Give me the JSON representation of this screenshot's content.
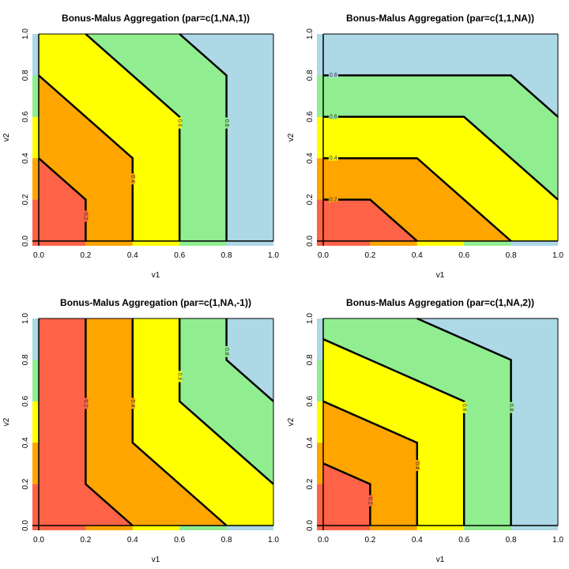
{
  "chart_data": [
    {
      "type": "contour",
      "title": "Bonus-Malus Aggregation (par=c(1,NA,1))",
      "xlabel": "v1",
      "ylabel": "v2",
      "xlim": [
        0,
        1
      ],
      "ylim": [
        0,
        1
      ],
      "xticks": [
        "0.0",
        "0.2",
        "0.4",
        "0.6",
        "0.8",
        "1.0"
      ],
      "yticks": [
        "0.0",
        "0.2",
        "0.4",
        "0.6",
        "0.8",
        "1.0"
      ],
      "label_orientation": "vertical",
      "contours": [
        {
          "level": "0.2",
          "points": [
            [
              0,
              0.4
            ],
            [
              0.2,
              0.2
            ],
            [
              0.2,
              0
            ]
          ],
          "label_at": [
            0.2,
            0.12
          ]
        },
        {
          "level": "0.4",
          "points": [
            [
              0,
              0.8
            ],
            [
              0.4,
              0.4
            ],
            [
              0.4,
              0
            ]
          ],
          "label_at": [
            0.4,
            0.3
          ]
        },
        {
          "level": "0.6",
          "points": [
            [
              0.2,
              1
            ],
            [
              0.6,
              0.6
            ],
            [
              0.6,
              0
            ]
          ],
          "label_at": [
            0.6,
            0.57
          ]
        },
        {
          "level": "0.8",
          "points": [
            [
              0.6,
              1
            ],
            [
              0.8,
              0.8
            ],
            [
              0.8,
              0
            ]
          ],
          "label_at": [
            0.8,
            0.57
          ]
        }
      ]
    },
    {
      "type": "contour",
      "title": "Bonus-Malus Aggregation (par=c(1,1,NA))",
      "xlabel": "v1",
      "ylabel": "v2",
      "xlim": [
        0,
        1
      ],
      "ylim": [
        0,
        1
      ],
      "xticks": [
        "0.0",
        "0.2",
        "0.4",
        "0.6",
        "0.8",
        "1.0"
      ],
      "yticks": [
        "0.0",
        "0.2",
        "0.4",
        "0.6",
        "0.8",
        "1.0"
      ],
      "label_orientation": "horizontal",
      "contours": [
        {
          "level": "0.2",
          "points": [
            [
              0,
              0.2
            ],
            [
              0.2,
              0.2
            ],
            [
              0.4,
              0
            ]
          ],
          "label_at": [
            0.03,
            0.2
          ]
        },
        {
          "level": "0.4",
          "points": [
            [
              0,
              0.4
            ],
            [
              0.4,
              0.4
            ],
            [
              0.8,
              0
            ]
          ],
          "label_at": [
            0.03,
            0.4
          ]
        },
        {
          "level": "0.6",
          "points": [
            [
              0,
              0.6
            ],
            [
              0.6,
              0.6
            ],
            [
              1,
              0.2
            ]
          ],
          "label_at": [
            0.03,
            0.6
          ]
        },
        {
          "level": "0.8",
          "points": [
            [
              0,
              0.8
            ],
            [
              0.8,
              0.8
            ],
            [
              1,
              0.6
            ]
          ],
          "label_at": [
            0.03,
            0.8
          ]
        }
      ]
    },
    {
      "type": "contour",
      "title": "Bonus-Malus Aggregation (par=c(1,NA,-1))",
      "xlabel": "v1",
      "ylabel": "v2",
      "xlim": [
        0,
        1
      ],
      "ylim": [
        0,
        1
      ],
      "xticks": [
        "0.0",
        "0.2",
        "0.4",
        "0.6",
        "0.8",
        "1.0"
      ],
      "yticks": [
        "0.0",
        "0.2",
        "0.4",
        "0.6",
        "0.8",
        "1.0"
      ],
      "label_orientation": "vertical",
      "contours": [
        {
          "level": "0.2",
          "points": [
            [
              0.2,
              1
            ],
            [
              0.2,
              0.2
            ],
            [
              0.4,
              0
            ]
          ],
          "label_at": [
            0.2,
            0.59
          ]
        },
        {
          "level": "0.4",
          "points": [
            [
              0.4,
              1
            ],
            [
              0.4,
              0.4
            ],
            [
              0.8,
              0
            ]
          ],
          "label_at": [
            0.4,
            0.59
          ]
        },
        {
          "level": "0.6",
          "points": [
            [
              0.6,
              1
            ],
            [
              0.6,
              0.6
            ],
            [
              1,
              0.2
            ]
          ],
          "label_at": [
            0.6,
            0.72
          ]
        },
        {
          "level": "0.8",
          "points": [
            [
              0.8,
              1
            ],
            [
              0.8,
              0.8
            ],
            [
              1,
              0.6
            ]
          ],
          "label_at": [
            0.8,
            0.84
          ]
        }
      ]
    },
    {
      "type": "contour",
      "title": "Bonus-Malus Aggregation (par=c(1,NA,2))",
      "xlabel": "v1",
      "ylabel": "v2",
      "xlim": [
        0,
        1
      ],
      "ylim": [
        0,
        1
      ],
      "xticks": [
        "0.0",
        "0.2",
        "0.4",
        "0.6",
        "0.8",
        "1.0"
      ],
      "yticks": [
        "0.0",
        "0.2",
        "0.4",
        "0.6",
        "0.8",
        "1.0"
      ],
      "label_orientation": "vertical",
      "contours": [
        {
          "level": "0.2",
          "points": [
            [
              0,
              0.3
            ],
            [
              0.2,
              0.2
            ],
            [
              0.2,
              0
            ]
          ],
          "label_at": [
            0.2,
            0.12
          ]
        },
        {
          "level": "0.4",
          "points": [
            [
              0,
              0.6
            ],
            [
              0.4,
              0.4
            ],
            [
              0.4,
              0
            ]
          ],
          "label_at": [
            0.4,
            0.29
          ]
        },
        {
          "level": "0.6",
          "points": [
            [
              0,
              0.9
            ],
            [
              0.6,
              0.6
            ],
            [
              0.6,
              0
            ]
          ],
          "label_at": [
            0.6,
            0.57
          ]
        },
        {
          "level": "0.8",
          "points": [
            [
              0.4,
              1
            ],
            [
              0.8,
              0.8
            ],
            [
              0.8,
              0
            ]
          ],
          "label_at": [
            0.8,
            0.57
          ]
        }
      ]
    }
  ],
  "band_colors": [
    "#ff6347",
    "#ffa500",
    "#ffff00",
    "#90ee90",
    "#add8e6"
  ]
}
